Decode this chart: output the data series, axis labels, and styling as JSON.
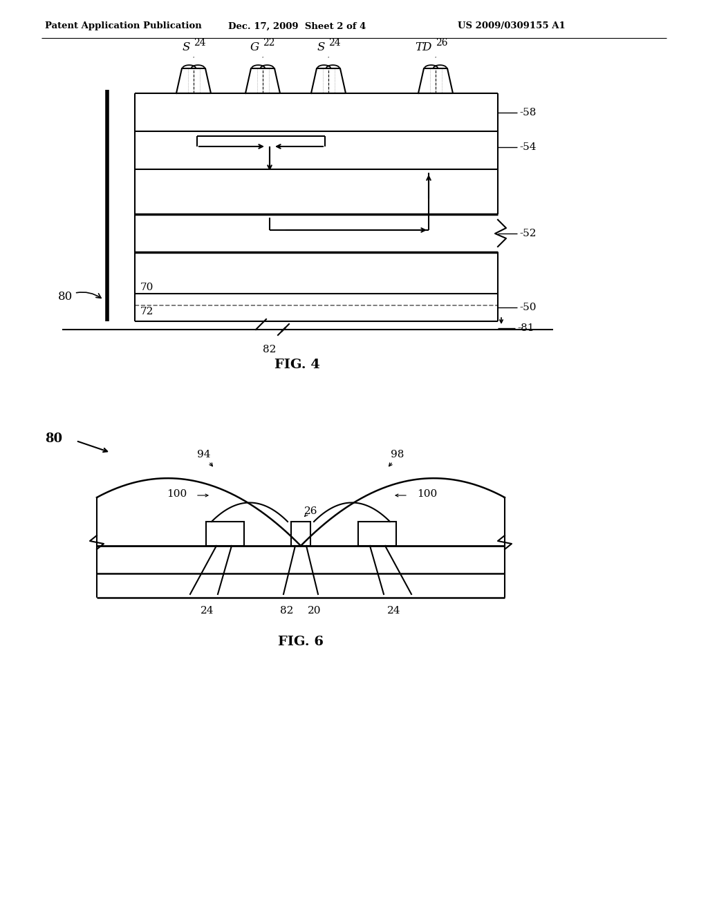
{
  "bg_color": "#ffffff",
  "line_color": "#000000",
  "header_text": "Patent Application Publication",
  "header_date": "Dec. 17, 2009  Sheet 2 of 4",
  "header_patent": "US 2009/0309155 A1",
  "fig4_label": "FIG. 4",
  "fig6_label": "FIG. 6"
}
